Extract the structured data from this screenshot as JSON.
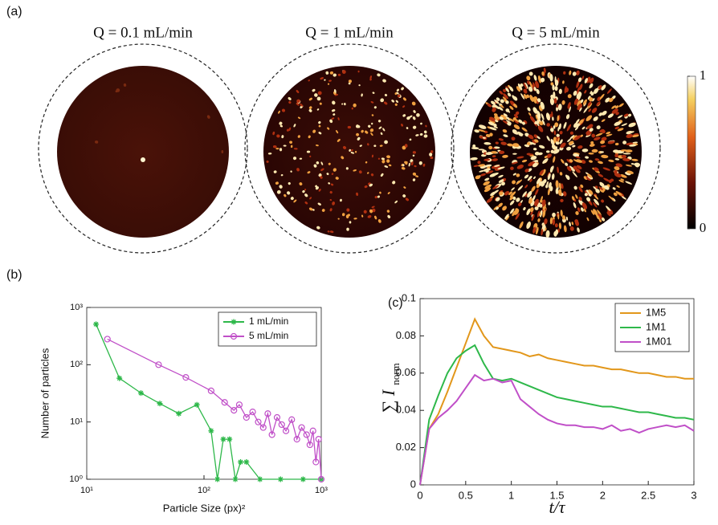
{
  "panel_a": {
    "label": "(a)",
    "titles": [
      "Q = 0.1 mL/min",
      "Q = 1 mL/min",
      "Q = 5 mL/min"
    ],
    "colorbar": {
      "ylim": [
        0,
        1
      ],
      "yticks": [
        0,
        1
      ]
    }
  },
  "chart_data": [
    {
      "type": "line",
      "panel_label": "(b)",
      "xlabel": "Particle Size (px)²",
      "ylabel": "Number of particles",
      "xlog": true,
      "ylog": true,
      "xlim": [
        10,
        1000
      ],
      "ylim": [
        1,
        1000
      ],
      "xticks": [
        {
          "value": 10,
          "label": "10¹"
        },
        {
          "value": 100,
          "label": "10²"
        },
        {
          "value": 1000,
          "label": "10³"
        }
      ],
      "yticks": [
        {
          "value": 1,
          "label": "10⁰"
        },
        {
          "value": 10,
          "label": "10¹"
        },
        {
          "value": 100,
          "label": "10²"
        },
        {
          "value": 1000,
          "label": "10³"
        }
      ],
      "legend": "upper right",
      "series": [
        {
          "name": "1 mL/min",
          "color": "#2eb84a",
          "marker": "star",
          "x": [
            12,
            19,
            29,
            42,
            61,
            87,
            115,
            130,
            146,
            165,
            185,
            205,
            230,
            300,
            450,
            700,
            1000
          ],
          "values": [
            510,
            58,
            32,
            21,
            14,
            20,
            7,
            1,
            5,
            5,
            1,
            2,
            2,
            1,
            1,
            1,
            1
          ]
        },
        {
          "name": "5 mL/min",
          "color": "#c04fc8",
          "marker": "circle",
          "x": [
            15,
            41,
            70,
            115,
            150,
            180,
            200,
            230,
            260,
            290,
            320,
            350,
            380,
            420,
            460,
            500,
            560,
            620,
            680,
            750,
            800,
            850,
            900,
            950,
            1000
          ],
          "values": [
            280,
            100,
            60,
            35,
            22,
            16,
            20,
            12,
            15,
            10,
            8,
            14,
            6,
            12,
            9,
            7,
            11,
            5,
            8,
            6,
            4,
            7,
            2,
            5,
            1
          ]
        }
      ]
    },
    {
      "type": "line",
      "panel_label": "(c)",
      "xlabel": "t/τ",
      "ylabel": "∑ I",
      "ylabel_sub": "norm",
      "xlog": false,
      "ylog": false,
      "xlim": [
        0,
        3
      ],
      "ylim": [
        0,
        0.1
      ],
      "xticks": [
        0,
        0.5,
        1,
        1.5,
        2,
        2.5,
        3
      ],
      "yticks": [
        0,
        0.02,
        0.04,
        0.06,
        0.08,
        0.1
      ],
      "legend": "upper right",
      "x": [
        0,
        0.1,
        0.2,
        0.3,
        0.4,
        0.5,
        0.6,
        0.7,
        0.8,
        0.9,
        1,
        1.1,
        1.2,
        1.3,
        1.4,
        1.5,
        1.6,
        1.7,
        1.8,
        1.9,
        2,
        2.1,
        2.2,
        2.3,
        2.4,
        2.5,
        2.6,
        2.7,
        2.8,
        2.9,
        3
      ],
      "series": [
        {
          "name": "1M5",
          "color": "#e2971b",
          "values": [
            0,
            0.03,
            0.038,
            0.05,
            0.063,
            0.076,
            0.089,
            0.08,
            0.074,
            0.073,
            0.072,
            0.071,
            0.069,
            0.07,
            0.068,
            0.067,
            0.066,
            0.065,
            0.064,
            0.064,
            0.063,
            0.062,
            0.062,
            0.061,
            0.06,
            0.06,
            0.059,
            0.058,
            0.058,
            0.057,
            0.057
          ]
        },
        {
          "name": "1M1",
          "color": "#2eb84a",
          "values": [
            0,
            0.035,
            0.048,
            0.06,
            0.068,
            0.072,
            0.075,
            0.065,
            0.057,
            0.056,
            0.057,
            0.055,
            0.053,
            0.051,
            0.049,
            0.047,
            0.046,
            0.045,
            0.044,
            0.043,
            0.042,
            0.042,
            0.041,
            0.04,
            0.039,
            0.039,
            0.038,
            0.037,
            0.036,
            0.036,
            0.035
          ]
        },
        {
          "name": "1M01",
          "color": "#c04fc8",
          "values": [
            0,
            0.03,
            0.036,
            0.04,
            0.045,
            0.052,
            0.059,
            0.056,
            0.057,
            0.055,
            0.056,
            0.046,
            0.042,
            0.038,
            0.035,
            0.033,
            0.032,
            0.032,
            0.031,
            0.031,
            0.03,
            0.032,
            0.029,
            0.03,
            0.028,
            0.03,
            0.031,
            0.032,
            0.031,
            0.032,
            0.029
          ]
        }
      ]
    }
  ]
}
